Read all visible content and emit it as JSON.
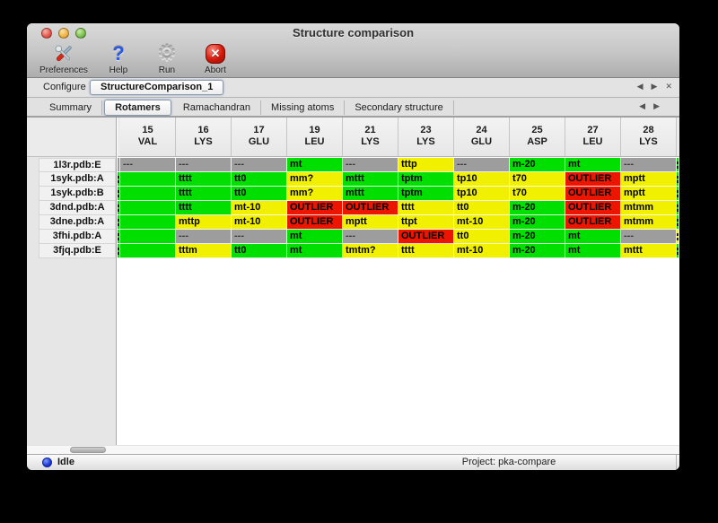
{
  "window": {
    "title": "Structure comparison"
  },
  "toolbar": {
    "items": [
      {
        "label": "Preferences",
        "icon": "tools-icon"
      },
      {
        "label": "Help",
        "icon": "question-mark-icon"
      },
      {
        "label": "Run",
        "icon": "gear-icon"
      },
      {
        "label": "Abort",
        "icon": "stop-x-icon"
      }
    ]
  },
  "configure": {
    "label": "Configure",
    "tab_name": "StructureComparison_1"
  },
  "nav": {
    "prev": "◀",
    "next": "▶",
    "close": "✕"
  },
  "tabs": {
    "items": [
      {
        "label": "Summary",
        "selected": false
      },
      {
        "label": "Rotamers",
        "selected": true
      },
      {
        "label": "Ramachandran",
        "selected": false
      },
      {
        "label": "Missing atoms",
        "selected": false
      },
      {
        "label": "Secondary structure",
        "selected": false
      }
    ]
  },
  "status_colors": {
    "ok": "#00DF00",
    "warn": "#F0F000",
    "outlier": "#EC1500",
    "missing": "#9D9D9D"
  },
  "table": {
    "columns": [
      {
        "num": "15",
        "res": "VAL"
      },
      {
        "num": "16",
        "res": "LYS"
      },
      {
        "num": "17",
        "res": "GLU"
      },
      {
        "num": "19",
        "res": "LEU"
      },
      {
        "num": "21",
        "res": "LYS"
      },
      {
        "num": "23",
        "res": "LYS"
      },
      {
        "num": "24",
        "res": "GLU"
      },
      {
        "num": "25",
        "res": "ASP"
      },
      {
        "num": "27",
        "res": "LEU"
      },
      {
        "num": "28",
        "res": "LYS"
      }
    ],
    "rows": [
      {
        "label": "1l3r.pdb:E",
        "left_edge": "missing",
        "right_edge": "ok",
        "cells": [
          {
            "text": "---",
            "status": "missing"
          },
          {
            "text": "---",
            "status": "missing"
          },
          {
            "text": "---",
            "status": "missing"
          },
          {
            "text": "mt",
            "status": "ok"
          },
          {
            "text": "---",
            "status": "missing"
          },
          {
            "text": "tttp",
            "status": "warn"
          },
          {
            "text": "---",
            "status": "missing"
          },
          {
            "text": "m-20",
            "status": "ok"
          },
          {
            "text": "mt",
            "status": "ok"
          },
          {
            "text": "---",
            "status": "missing"
          }
        ]
      },
      {
        "label": "1syk.pdb:A",
        "left_edge": "ok",
        "right_edge": "ok",
        "cells": [
          {
            "text": "",
            "status": "ok"
          },
          {
            "text": "tttt",
            "status": "ok"
          },
          {
            "text": "tt0",
            "status": "ok"
          },
          {
            "text": "mm?",
            "status": "warn"
          },
          {
            "text": "mttt",
            "status": "ok"
          },
          {
            "text": "tptm",
            "status": "ok"
          },
          {
            "text": "tp10",
            "status": "warn"
          },
          {
            "text": "t70",
            "status": "warn"
          },
          {
            "text": "OUTLIER",
            "status": "outlier"
          },
          {
            "text": "mptt",
            "status": "warn"
          }
        ]
      },
      {
        "label": "1syk.pdb:B",
        "left_edge": "ok",
        "right_edge": "ok",
        "cells": [
          {
            "text": "",
            "status": "ok"
          },
          {
            "text": "tttt",
            "status": "ok"
          },
          {
            "text": "tt0",
            "status": "ok"
          },
          {
            "text": "mm?",
            "status": "warn"
          },
          {
            "text": "mttt",
            "status": "ok"
          },
          {
            "text": "tptm",
            "status": "ok"
          },
          {
            "text": "tp10",
            "status": "warn"
          },
          {
            "text": "t70",
            "status": "warn"
          },
          {
            "text": "OUTLIER",
            "status": "outlier"
          },
          {
            "text": "mptt",
            "status": "warn"
          }
        ]
      },
      {
        "label": "3dnd.pdb:A",
        "left_edge": "ok",
        "right_edge": "ok",
        "cells": [
          {
            "text": "",
            "status": "ok"
          },
          {
            "text": "tttt",
            "status": "ok"
          },
          {
            "text": "mt-10",
            "status": "warn"
          },
          {
            "text": "OUTLIER",
            "status": "outlier"
          },
          {
            "text": "OUTLIER",
            "status": "outlier"
          },
          {
            "text": "tttt",
            "status": "warn"
          },
          {
            "text": "tt0",
            "status": "warn"
          },
          {
            "text": "m-20",
            "status": "ok"
          },
          {
            "text": "OUTLIER",
            "status": "outlier"
          },
          {
            "text": "mtmm",
            "status": "warn"
          }
        ]
      },
      {
        "label": "3dne.pdb:A",
        "left_edge": "ok",
        "right_edge": "ok",
        "cells": [
          {
            "text": "",
            "status": "ok"
          },
          {
            "text": "mttp",
            "status": "warn"
          },
          {
            "text": "mt-10",
            "status": "warn"
          },
          {
            "text": "OUTLIER",
            "status": "outlier"
          },
          {
            "text": "mptt",
            "status": "warn"
          },
          {
            "text": "ttpt",
            "status": "warn"
          },
          {
            "text": "mt-10",
            "status": "warn"
          },
          {
            "text": "m-20",
            "status": "ok"
          },
          {
            "text": "OUTLIER",
            "status": "outlier"
          },
          {
            "text": "mtmm",
            "status": "warn"
          }
        ]
      },
      {
        "label": "3fhi.pdb:A",
        "left_edge": "ok",
        "right_edge": "warn",
        "cells": [
          {
            "text": "",
            "status": "ok"
          },
          {
            "text": "---",
            "status": "missing"
          },
          {
            "text": "---",
            "status": "missing"
          },
          {
            "text": "mt",
            "status": "ok"
          },
          {
            "text": "---",
            "status": "missing"
          },
          {
            "text": "OUTLIER",
            "status": "outlier"
          },
          {
            "text": "tt0",
            "status": "warn"
          },
          {
            "text": "m-20",
            "status": "ok"
          },
          {
            "text": "mt",
            "status": "ok"
          },
          {
            "text": "---",
            "status": "missing"
          }
        ]
      },
      {
        "label": "3fjq.pdb:E",
        "left_edge": "ok",
        "right_edge": "ok",
        "cells": [
          {
            "text": "",
            "status": "ok"
          },
          {
            "text": "tttm",
            "status": "warn"
          },
          {
            "text": "tt0",
            "status": "ok"
          },
          {
            "text": "mt",
            "status": "ok"
          },
          {
            "text": "tmtm?",
            "status": "warn"
          },
          {
            "text": "tttt",
            "status": "warn"
          },
          {
            "text": "mt-10",
            "status": "warn"
          },
          {
            "text": "m-20",
            "status": "ok"
          },
          {
            "text": "mt",
            "status": "ok"
          },
          {
            "text": "mttt",
            "status": "warn"
          }
        ]
      }
    ]
  },
  "statusbar": {
    "status": "Idle",
    "project": "Project: pka-compare"
  }
}
